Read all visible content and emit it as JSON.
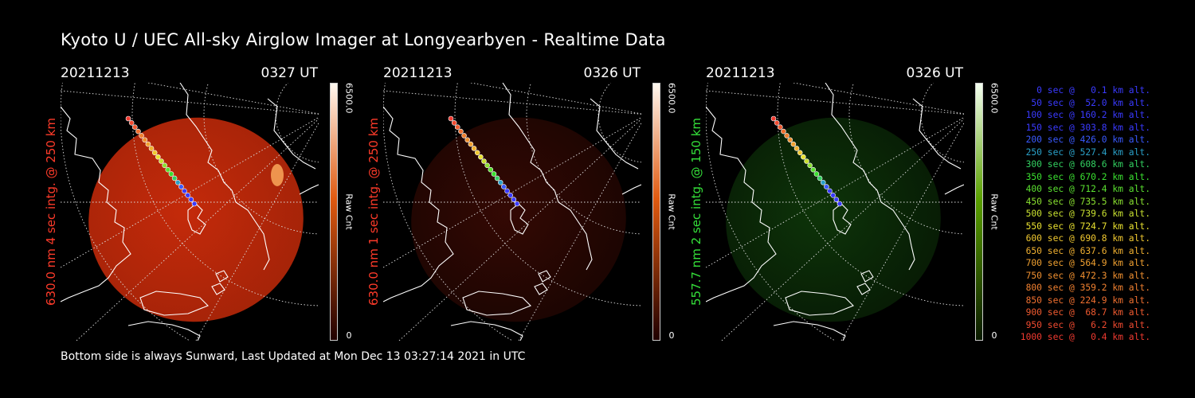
{
  "title": "Kyoto U / UEC All-sky Airglow Imager at Longyearbyen - Realtime Data",
  "footer": "Bottom side is always Sunward, Last Updated at Mon Dec 13 03:27:14 2021 in UTC",
  "panels": [
    {
      "date": "20211213",
      "time": "0327 UT",
      "label": "630.0 nm 4 sec intg. @ 250 km",
      "label_color": "#ff3b2a",
      "cbar_top": "6500.0",
      "cbar_label": "Raw Cnt",
      "cbar_bottom": "0",
      "color": "#c42a0a",
      "intensity": "bright-red"
    },
    {
      "date": "20211213",
      "time": "0326 UT",
      "label": "630.0 nm 1 sec intg. @ 250 km",
      "label_color": "#ff3b2a",
      "cbar_top": "6500.0",
      "cbar_label": "Raw Cnt",
      "cbar_bottom": "0",
      "color": "#3a0a04",
      "intensity": "dim-red"
    },
    {
      "date": "20211213",
      "time": "0326 UT",
      "label": "557.7 nm 2 sec intg. @ 150 km",
      "label_color": "#35e03a",
      "cbar_top": "6500.0",
      "cbar_label": "Raw Cnt",
      "cbar_bottom": "0",
      "color": "#0f3a0a",
      "intensity": "dim-green"
    }
  ],
  "legend": [
    {
      "text": "0 sec @   0.1 km alt.",
      "color": "#3a3aff"
    },
    {
      "text": "50 sec @  52.0 km alt.",
      "color": "#3a3aff"
    },
    {
      "text": "100 sec @ 160.2 km alt.",
      "color": "#3a3aff"
    },
    {
      "text": "150 sec @ 303.8 km alt.",
      "color": "#3a3aff"
    },
    {
      "text": "200 sec @ 426.0 km alt.",
      "color": "#3a5aff"
    },
    {
      "text": "250 sec @ 527.4 km alt.",
      "color": "#2aa0c8"
    },
    {
      "text": "300 sec @ 608.6 km alt.",
      "color": "#32d060"
    },
    {
      "text": "350 sec @ 670.2 km alt.",
      "color": "#3ae030"
    },
    {
      "text": "400 sec @ 712.4 km alt.",
      "color": "#5ae030"
    },
    {
      "text": "450 sec @ 735.5 km alt.",
      "color": "#8ae030"
    },
    {
      "text": "500 sec @ 739.6 km alt.",
      "color": "#c8e030"
    },
    {
      "text": "550 sec @ 724.7 km alt.",
      "color": "#e8e030"
    },
    {
      "text": "600 sec @ 690.8 km alt.",
      "color": "#f0c830"
    },
    {
      "text": "650 sec @ 637.6 km alt.",
      "color": "#f0b030"
    },
    {
      "text": "700 sec @ 564.9 km alt.",
      "color": "#f0a030"
    },
    {
      "text": "750 sec @ 472.3 km alt.",
      "color": "#f09030"
    },
    {
      "text": "800 sec @ 359.2 km alt.",
      "color": "#f08030"
    },
    {
      "text": "850 sec @ 224.9 km alt.",
      "color": "#f07030"
    },
    {
      "text": "900 sec @  68.7 km alt.",
      "color": "#f05a30"
    },
    {
      "text": "950 sec @   6.2 km alt.",
      "color": "#f04a30"
    },
    {
      "text": "1000 sec @   0.4 km alt.",
      "color": "#f03a30"
    }
  ]
}
